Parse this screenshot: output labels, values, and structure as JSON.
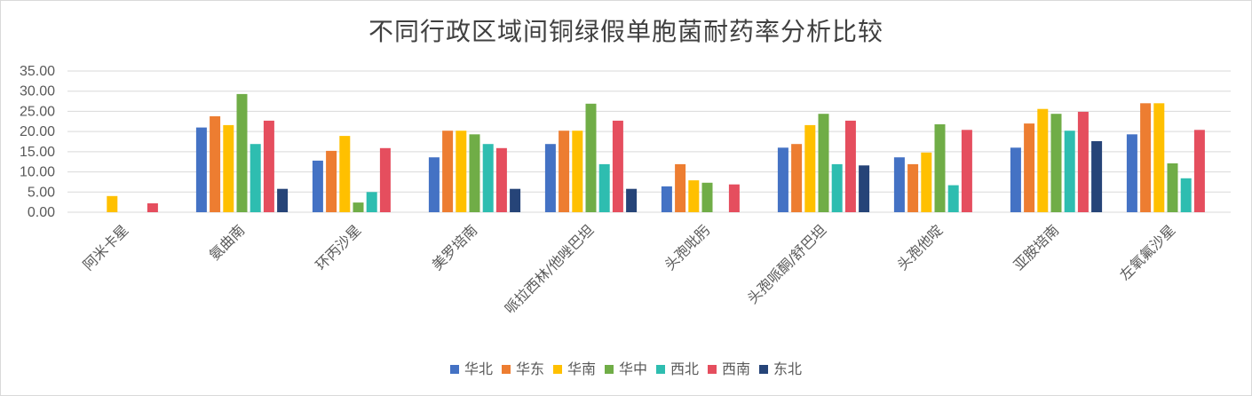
{
  "chart_data": {
    "type": "bar",
    "title": "不同行政区域间铜绿假单胞菌耐药率分析比较",
    "categories": [
      "阿米卡星",
      "氨曲南",
      "环丙沙星",
      "美罗培南",
      "哌拉西林/他唑巴坦",
      "头孢吡肟",
      "头孢哌酮/舒巴坦",
      "头孢他啶",
      "亚胺培南",
      "左氧氟沙星"
    ],
    "yticks": [
      "0.00",
      "5.00",
      "10.00",
      "15.00",
      "20.00",
      "25.00",
      "30.00",
      "35.00"
    ],
    "ylim": [
      0,
      35
    ],
    "grid": true,
    "legend_position": "bottom",
    "series": [
      {
        "name": "华北",
        "color": "#4472c4",
        "values": [
          0,
          21.0,
          12.8,
          13.6,
          16.9,
          6.4,
          16.0,
          13.6,
          16.0,
          19.3
        ]
      },
      {
        "name": "华东",
        "color": "#ed7d31",
        "values": [
          0,
          23.8,
          15.2,
          20.2,
          20.2,
          11.9,
          16.9,
          11.9,
          22.0,
          27.0
        ]
      },
      {
        "name": "华南",
        "color": "#ffc000",
        "values": [
          4.0,
          21.6,
          18.9,
          20.2,
          20.2,
          7.9,
          21.6,
          14.8,
          25.6,
          27.0
        ]
      },
      {
        "name": "华中",
        "color": "#70ad47",
        "values": [
          0,
          29.3,
          2.4,
          19.3,
          26.9,
          7.3,
          24.4,
          21.8,
          24.4,
          12.1
        ]
      },
      {
        "name": "西北",
        "color": "#2ebdb0",
        "values": [
          0,
          16.9,
          5.0,
          16.9,
          11.9,
          0,
          11.9,
          6.7,
          20.2,
          8.4
        ]
      },
      {
        "name": "西南",
        "color": "#e54e5e",
        "values": [
          2.2,
          22.7,
          15.9,
          15.9,
          22.7,
          6.9,
          22.7,
          20.4,
          24.9,
          20.4
        ]
      },
      {
        "name": "东北",
        "color": "#264478",
        "values": [
          0,
          5.8,
          0,
          5.8,
          5.8,
          0,
          11.6,
          0,
          17.6,
          0
        ]
      }
    ]
  }
}
